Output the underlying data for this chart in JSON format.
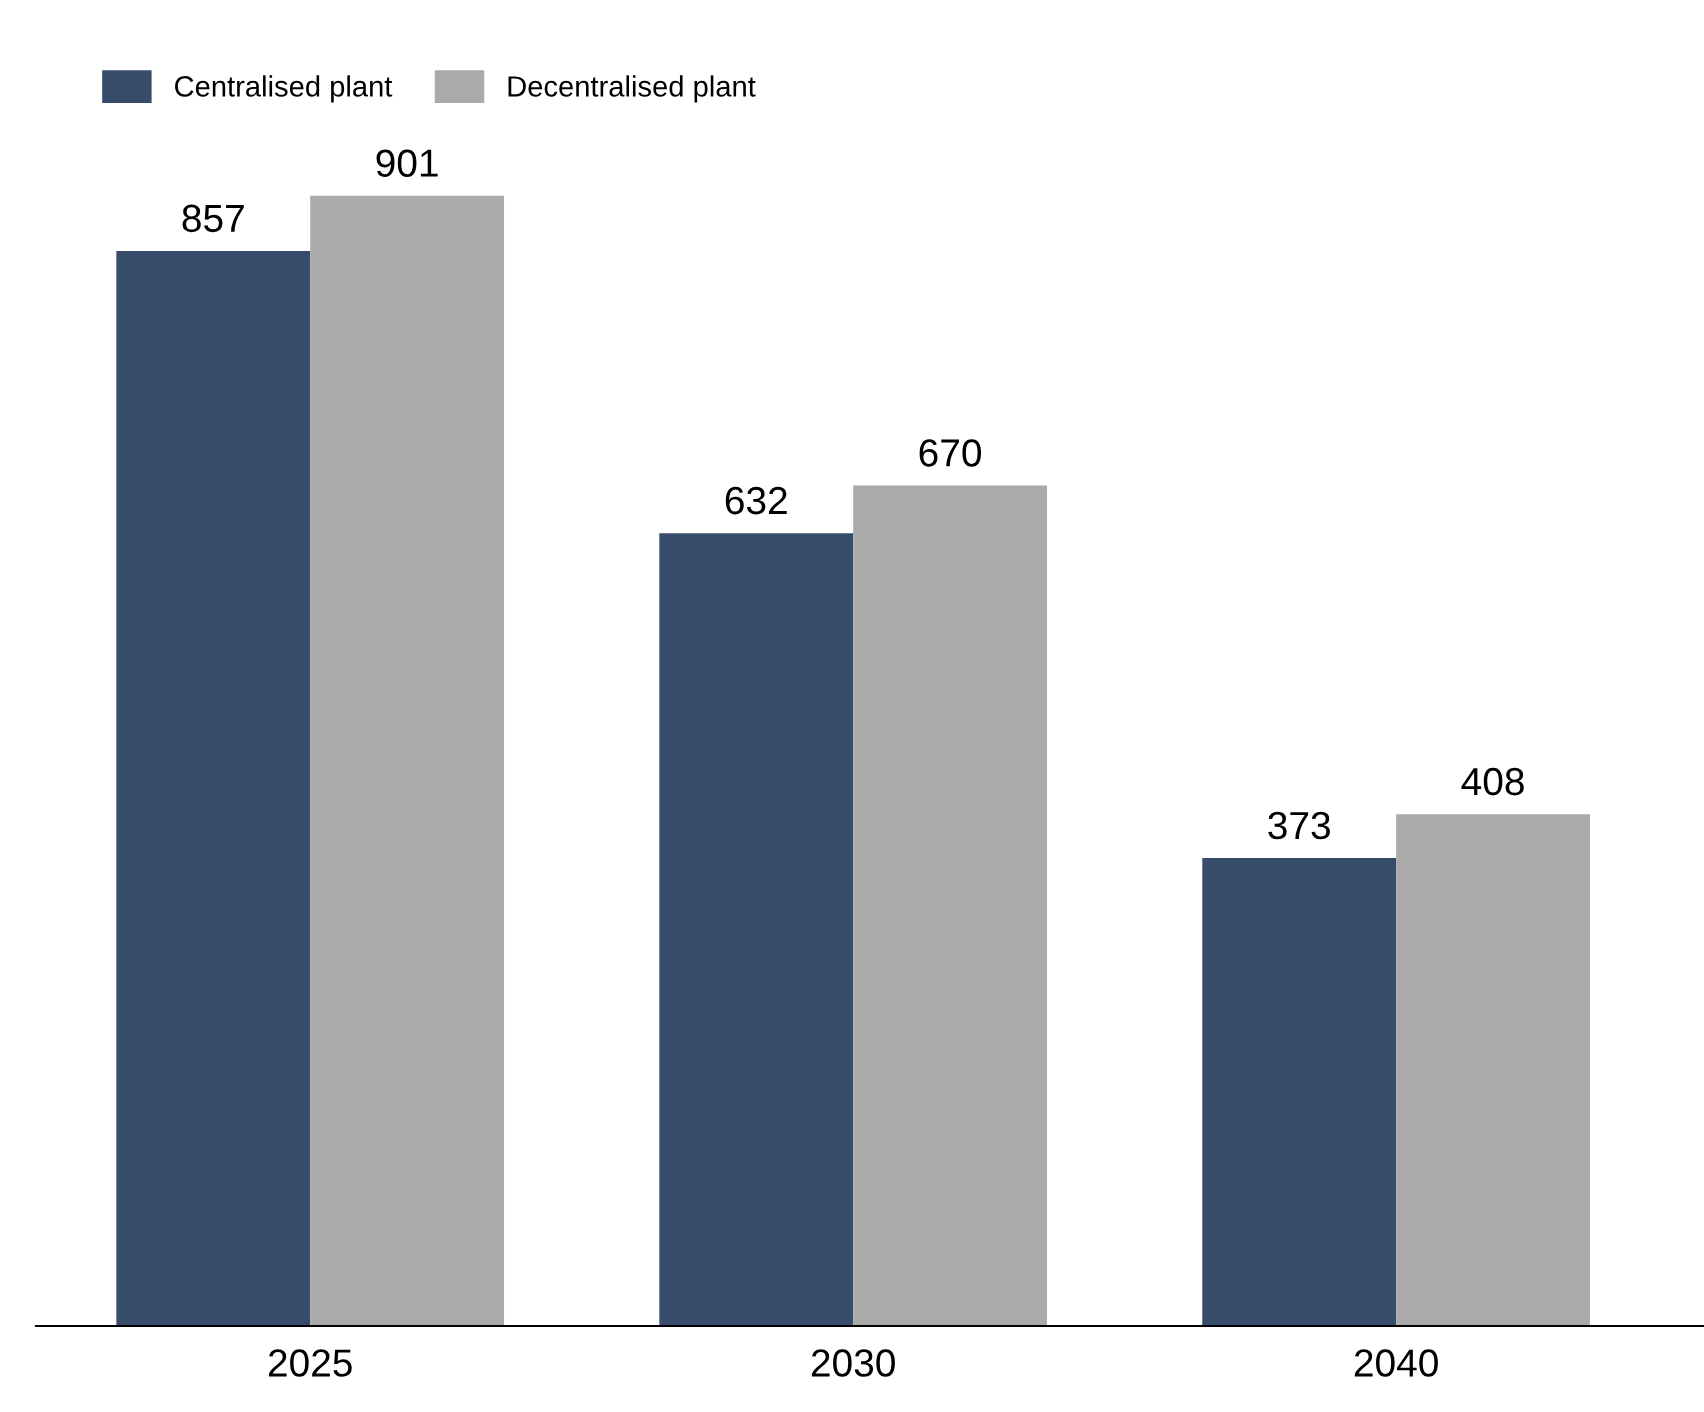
{
  "chart_data": {
    "type": "bar",
    "categories": [
      "2025",
      "2030",
      "2040"
    ],
    "series": [
      {
        "name": "Centralised plant",
        "color": "#374c6b",
        "values": [
          857,
          632,
          373
        ]
      },
      {
        "name": "Decentralised plant",
        "color": "#aaaaaa",
        "values": [
          901,
          670,
          408
        ]
      }
    ],
    "tick_labels": "x",
    "data_labels": true,
    "legend": "top left",
    "grid": false
  }
}
